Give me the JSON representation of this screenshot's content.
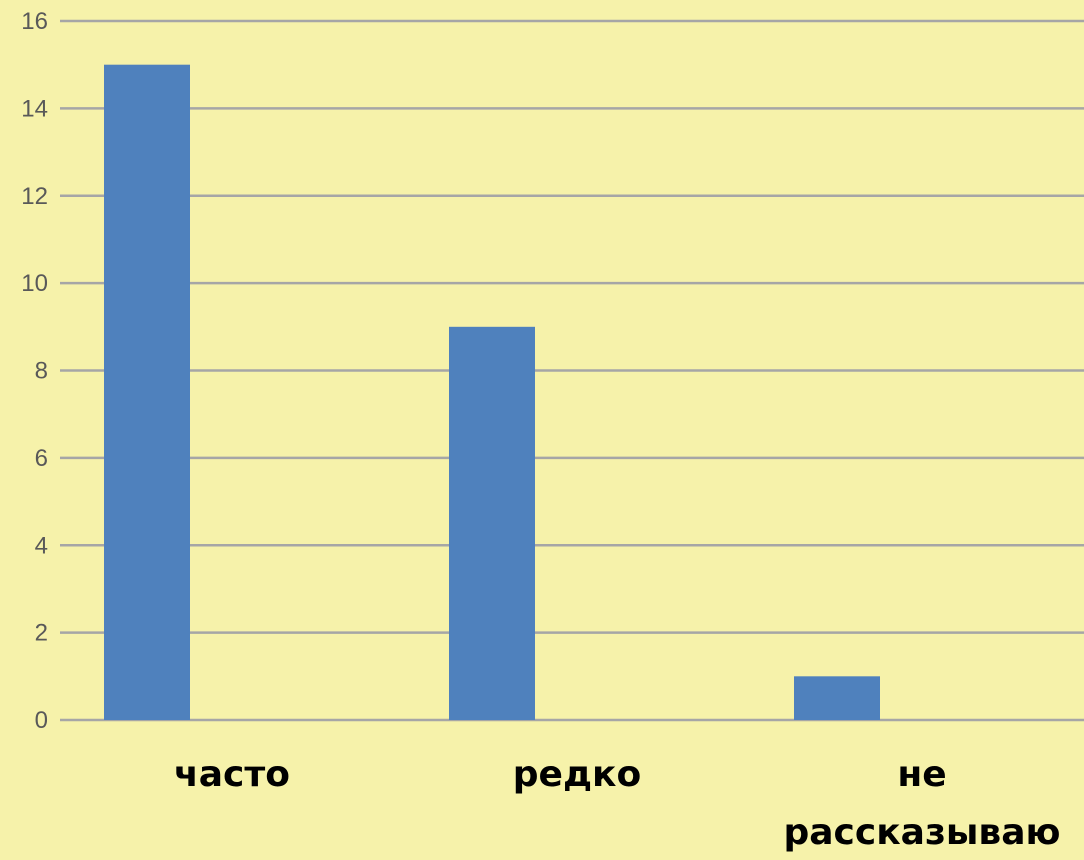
{
  "chart_data": {
    "type": "bar",
    "categories": [
      "часто",
      "редко",
      "не рассказываю"
    ],
    "category_lines": [
      [
        "часто"
      ],
      [
        "редко"
      ],
      [
        "не",
        "рассказываю"
      ]
    ],
    "values": [
      15,
      9,
      1
    ],
    "ylim": [
      0,
      16
    ],
    "yticks": [
      0,
      2,
      4,
      6,
      8,
      10,
      12,
      14,
      16
    ],
    "grid": true,
    "legend": "none",
    "title": "",
    "xlabel": "",
    "ylabel": ""
  },
  "colors": {
    "background": "#f6f2aa",
    "bar": "#4f81bd",
    "grid": "#a6a6a6",
    "tick_text": "#595959",
    "category_text": "#000000"
  }
}
